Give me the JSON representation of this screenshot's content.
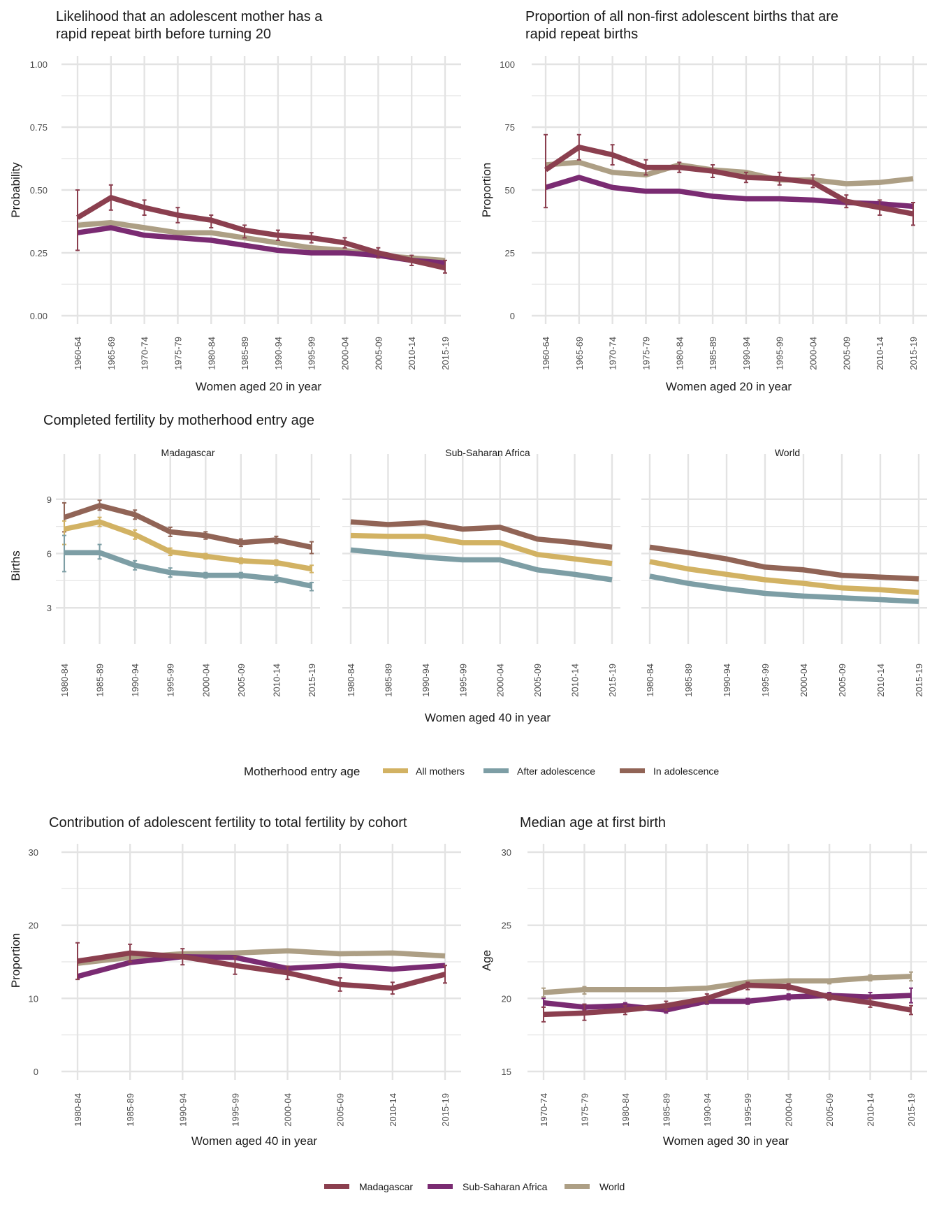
{
  "colors": {
    "madagascar": "#8b3f4f",
    "ssa": "#7a2b72",
    "world": "#ad9f85",
    "all_mothers": "#d2b263",
    "after_adolescence": "#7d9ea5",
    "in_adolescence": "#916456",
    "grid": "#e3e3e3",
    "text": "#1a1a1a",
    "tick_text": "#4d4d4d"
  },
  "legends": {
    "entry": {
      "title": "Motherhood entry age",
      "items": [
        {
          "label": "All mothers",
          "color_key": "all_mothers"
        },
        {
          "label": "After adolescence",
          "color_key": "after_adolescence"
        },
        {
          "label": "In adolescence",
          "color_key": "in_adolescence"
        }
      ]
    },
    "region": {
      "items": [
        {
          "label": "Madagascar",
          "color_key": "madagascar"
        },
        {
          "label": "Sub-Saharan Africa",
          "color_key": "ssa"
        },
        {
          "label": "World",
          "color_key": "world"
        }
      ]
    }
  },
  "chart_data": [
    {
      "id": "rapid_repeat_likelihood",
      "type": "line",
      "title": "Likelihood that an adolescent mother has a rapid repeat birth before turning 20",
      "title_lines": [
        "Likelihood that an adolescent mother has a",
        "rapid repeat birth before turning 20"
      ],
      "xlabel": "Women aged 20 in year",
      "ylabel": "Probability",
      "ylim": [
        0,
        1
      ],
      "yticks": [
        0,
        0.25,
        0.5,
        0.75,
        1
      ],
      "ytick_labels": [
        "0.00",
        "0.25",
        "0.50",
        "0.75",
        "1.00"
      ],
      "grid": true,
      "categories": [
        "1960-64",
        "1965-69",
        "1970-74",
        "1975-79",
        "1980-84",
        "1985-89",
        "1990-94",
        "1995-99",
        "2000-04",
        "2005-09",
        "2010-14",
        "2015-19"
      ],
      "series": [
        {
          "name": "World",
          "color_key": "world",
          "values": [
            0.36,
            0.37,
            0.35,
            0.33,
            0.33,
            0.31,
            0.29,
            0.27,
            0.26,
            0.24,
            0.23,
            0.22
          ]
        },
        {
          "name": "Sub-Saharan Africa",
          "color_key": "ssa",
          "values": [
            0.33,
            0.35,
            0.32,
            0.31,
            0.3,
            0.28,
            0.26,
            0.25,
            0.25,
            0.24,
            0.22,
            0.21
          ]
        },
        {
          "name": "Madagascar",
          "color_key": "madagascar",
          "values": [
            0.39,
            0.47,
            0.43,
            0.4,
            0.38,
            0.34,
            0.32,
            0.31,
            0.29,
            0.25,
            0.22,
            0.19
          ],
          "error": [
            [
              0.26,
              0.5
            ],
            [
              0.42,
              0.52
            ],
            [
              0.4,
              0.46
            ],
            [
              0.37,
              0.43
            ],
            [
              0.35,
              0.4
            ],
            [
              0.31,
              0.36
            ],
            [
              0.3,
              0.34
            ],
            [
              0.29,
              0.33
            ],
            [
              0.27,
              0.31
            ],
            [
              0.23,
              0.27
            ],
            [
              0.2,
              0.24
            ],
            [
              0.17,
              0.22
            ]
          ]
        }
      ]
    },
    {
      "id": "rapid_repeat_proportion",
      "type": "line",
      "title": "Proportion of all non-first adolescent births that are rapid repeat births",
      "title_lines": [
        "Proportion of all non-first adolescent births that are",
        "rapid repeat births"
      ],
      "xlabel": "Women aged 20 in year",
      "ylabel": "Proportion",
      "ylim": [
        0,
        100
      ],
      "yticks": [
        0,
        25,
        50,
        75,
        100
      ],
      "ytick_labels": [
        "0",
        "25",
        "50",
        "75",
        "100"
      ],
      "grid": true,
      "categories": [
        "1960-64",
        "1965-69",
        "1970-74",
        "1975-79",
        "1980-84",
        "1985-89",
        "1990-94",
        "1995-99",
        "2000-04",
        "2005-09",
        "2010-14",
        "2015-19"
      ],
      "series": [
        {
          "name": "World",
          "color_key": "world",
          "values": [
            60,
            61,
            57,
            56,
            60,
            58,
            57,
            54,
            54,
            52.5,
            53,
            54.5
          ]
        },
        {
          "name": "Sub-Saharan Africa",
          "color_key": "ssa",
          "values": [
            51,
            55,
            51,
            49.5,
            49.5,
            47.5,
            46.5,
            46.5,
            46,
            45,
            44.5,
            43.5
          ]
        },
        {
          "name": "Madagascar",
          "color_key": "madagascar",
          "values": [
            58,
            67,
            64,
            59,
            59,
            57.5,
            55,
            54.5,
            53,
            45.5,
            43,
            40.5
          ],
          "error": [
            [
              43,
              72
            ],
            [
              62,
              72
            ],
            [
              60,
              68
            ],
            [
              56,
              62
            ],
            [
              57,
              61
            ],
            [
              55,
              60
            ],
            [
              53,
              57
            ],
            [
              52,
              57
            ],
            [
              51,
              56
            ],
            [
              43,
              48
            ],
            [
              40,
              46
            ],
            [
              36,
              45
            ]
          ]
        }
      ]
    },
    {
      "id": "completed_fertility",
      "type": "line",
      "title": "Completed fertility by motherhood entry age",
      "xlabel": "Women aged 40 in year",
      "ylabel": "Births",
      "ylim": [
        1,
        11.5
      ],
      "yticks": [
        3,
        6,
        9
      ],
      "ytick_labels": [
        "3",
        "6",
        "9"
      ],
      "grid": true,
      "categories": [
        "1980-84",
        "1985-89",
        "1990-94",
        "1995-99",
        "2000-04",
        "2005-09",
        "2010-14",
        "2015-19"
      ],
      "facets": [
        {
          "name": "Madagascar",
          "series": [
            {
              "name": "In adolescence",
              "color_key": "in_adolescence",
              "values": [
                8.0,
                8.65,
                8.15,
                7.2,
                7.0,
                6.6,
                6.75,
                6.35
              ],
              "error": [
                [
                  7.2,
                  8.8
                ],
                [
                  8.4,
                  8.95
                ],
                [
                  7.9,
                  8.4
                ],
                [
                  6.95,
                  7.45
                ],
                [
                  6.8,
                  7.2
                ],
                [
                  6.4,
                  6.8
                ],
                [
                  6.55,
                  6.95
                ],
                [
                  6.0,
                  6.65
                ]
              ]
            },
            {
              "name": "All mothers",
              "color_key": "all_mothers",
              "values": [
                7.35,
                7.75,
                7.05,
                6.1,
                5.85,
                5.6,
                5.5,
                5.15
              ],
              "error": [
                [
                  6.5,
                  7.8
                ],
                [
                  7.5,
                  8.0
                ],
                [
                  6.8,
                  7.3
                ],
                [
                  5.9,
                  6.3
                ],
                [
                  5.7,
                  6.0
                ],
                [
                  5.45,
                  5.75
                ],
                [
                  5.35,
                  5.65
                ],
                [
                  4.95,
                  5.35
                ]
              ]
            },
            {
              "name": "After adolescence",
              "color_key": "after_adolescence",
              "values": [
                6.05,
                6.05,
                5.35,
                4.95,
                4.8,
                4.8,
                4.6,
                4.2
              ],
              "error": [
                [
                  5.0,
                  7.0
                ],
                [
                  5.7,
                  6.5
                ],
                [
                  5.1,
                  5.6
                ],
                [
                  4.7,
                  5.2
                ],
                [
                  4.65,
                  4.95
                ],
                [
                  4.65,
                  4.95
                ],
                [
                  4.4,
                  4.8
                ],
                [
                  3.95,
                  4.4
                ]
              ]
            }
          ]
        },
        {
          "name": "Sub-Saharan Africa",
          "series": [
            {
              "name": "In adolescence",
              "color_key": "in_adolescence",
              "values": [
                7.75,
                7.6,
                7.7,
                7.35,
                7.45,
                6.8,
                6.6,
                6.35
              ]
            },
            {
              "name": "All mothers",
              "color_key": "all_mothers",
              "values": [
                7.0,
                6.95,
                6.95,
                6.6,
                6.6,
                5.95,
                5.7,
                5.45
              ]
            },
            {
              "name": "After adolescence",
              "color_key": "after_adolescence",
              "values": [
                6.2,
                6.0,
                5.8,
                5.65,
                5.65,
                5.1,
                4.85,
                4.55
              ]
            }
          ]
        },
        {
          "name": "World",
          "series": [
            {
              "name": "In adolescence",
              "color_key": "in_adolescence",
              "values": [
                6.35,
                6.05,
                5.7,
                5.25,
                5.1,
                4.8,
                4.7,
                4.6
              ]
            },
            {
              "name": "All mothers",
              "color_key": "all_mothers",
              "values": [
                5.55,
                5.15,
                4.85,
                4.55,
                4.35,
                4.1,
                4.0,
                3.85
              ]
            },
            {
              "name": "After adolescence",
              "color_key": "after_adolescence",
              "values": [
                4.75,
                4.35,
                4.05,
                3.8,
                3.65,
                3.55,
                3.45,
                3.35
              ]
            }
          ]
        }
      ]
    },
    {
      "id": "adolescent_contribution",
      "type": "line",
      "title": "Contribution of adolescent fertility to total fertility by cohort",
      "xlabel": "Women aged 40 in year",
      "ylabel": "Proportion",
      "ylim": [
        0,
        30
      ],
      "yticks": [
        0,
        10,
        20,
        30
      ],
      "ytick_labels": [
        "0",
        "10",
        "20",
        "30"
      ],
      "grid": true,
      "categories": [
        "1980-84",
        "1985-89",
        "1990-94",
        "1995-99",
        "2000-04",
        "2005-09",
        "2010-14",
        "2015-19"
      ],
      "series": [
        {
          "name": "World",
          "color_key": "world",
          "values": [
            14.8,
            15.6,
            16.1,
            16.2,
            16.5,
            16.1,
            16.2,
            15.8
          ]
        },
        {
          "name": "Sub-Saharan Africa",
          "color_key": "ssa",
          "values": [
            13.0,
            14.9,
            15.7,
            15.6,
            14.1,
            14.5,
            14.0,
            14.5
          ]
        },
        {
          "name": "Madagascar",
          "color_key": "madagascar",
          "values": [
            15.1,
            16.2,
            15.7,
            14.5,
            13.5,
            11.9,
            11.4,
            13.3
          ],
          "error": [
            [
              12.6,
              17.6
            ],
            [
              15.0,
              17.4
            ],
            [
              14.6,
              16.8
            ],
            [
              13.3,
              15.7
            ],
            [
              12.6,
              14.4
            ],
            [
              11.0,
              12.8
            ],
            [
              10.6,
              12.2
            ],
            [
              12.1,
              14.5
            ]
          ]
        }
      ]
    },
    {
      "id": "median_age_first_birth",
      "type": "line",
      "title": "Median age at first birth",
      "xlabel": "Women aged 30 in year",
      "ylabel": "Age",
      "ylim": [
        15,
        30
      ],
      "yticks": [
        15,
        20,
        25,
        30
      ],
      "ytick_labels": [
        "15",
        "20",
        "25",
        "30"
      ],
      "grid": true,
      "categories": [
        "1970-74",
        "1975-79",
        "1980-84",
        "1985-89",
        "1990-94",
        "1995-99",
        "2000-04",
        "2005-09",
        "2010-14",
        "2015-19"
      ],
      "series": [
        {
          "name": "World",
          "color_key": "world",
          "values": [
            20.4,
            20.6,
            20.6,
            20.6,
            20.7,
            21.1,
            21.2,
            21.2,
            21.4,
            21.5
          ],
          "error": [
            [
              20.1,
              20.7
            ],
            [
              20.3,
              20.8
            ],
            [
              20.5,
              20.7
            ],
            [
              20.5,
              20.7
            ],
            [
              20.6,
              20.8
            ],
            [
              21.0,
              21.2
            ],
            [
              21.1,
              21.3
            ],
            [
              21.0,
              21.3
            ],
            [
              21.2,
              21.6
            ],
            [
              21.2,
              21.8
            ]
          ]
        },
        {
          "name": "Sub-Saharan Africa",
          "color_key": "ssa",
          "values": [
            19.7,
            19.4,
            19.5,
            19.2,
            19.8,
            19.8,
            20.1,
            20.2,
            20.1,
            20.2
          ],
          "error": [
            [
              19.4,
              20.0
            ],
            [
              19.2,
              19.6
            ],
            [
              19.3,
              19.7
            ],
            [
              19.0,
              19.4
            ],
            [
              19.6,
              20.0
            ],
            [
              19.6,
              20.0
            ],
            [
              19.9,
              20.3
            ],
            [
              19.9,
              20.4
            ],
            [
              19.8,
              20.4
            ],
            [
              19.7,
              20.7
            ]
          ]
        },
        {
          "name": "Madagascar",
          "color_key": "madagascar",
          "values": [
            18.9,
            19.0,
            19.2,
            19.5,
            20.0,
            20.9,
            20.8,
            20.1,
            19.7,
            19.2
          ],
          "error": [
            [
              18.4,
              19.4
            ],
            [
              18.5,
              19.6
            ],
            [
              18.9,
              19.5
            ],
            [
              19.2,
              19.8
            ],
            [
              19.7,
              20.3
            ],
            [
              20.6,
              21.1
            ],
            [
              20.6,
              21.0
            ],
            [
              19.9,
              20.3
            ],
            [
              19.4,
              20.0
            ],
            [
              18.9,
              19.5
            ]
          ]
        }
      ]
    }
  ]
}
